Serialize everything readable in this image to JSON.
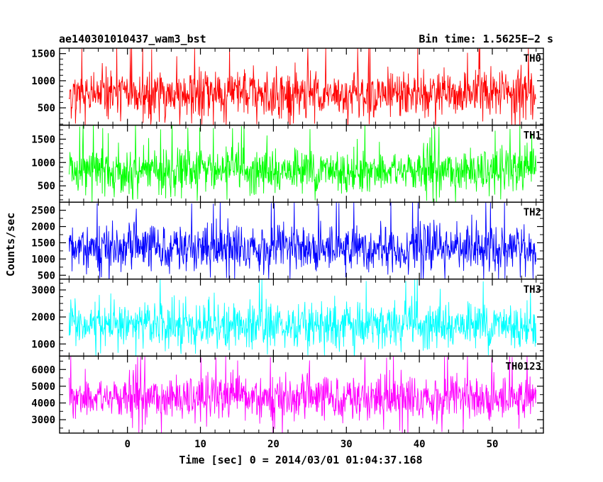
{
  "header": {
    "left_title": "ae140301010437_wam3_bst",
    "right_title": "Bin time: 1.5625E−2 s"
  },
  "chart_data": {
    "type": "line",
    "title": "ae140301010437_wam3_bst",
    "subtitle": "Bin time: 1.5625E−2 s",
    "xlabel": "Time [sec] 0 = 2014/03/01 01:04:37.168",
    "ylabel": "Counts/sec",
    "xlim": [
      -9.3,
      57.0
    ],
    "data_xrange": [
      -8.0,
      56.0
    ],
    "x_ticks": [
      0,
      10,
      20,
      30,
      40,
      50
    ],
    "x_tick_labels": [
      "0",
      "10",
      "20",
      "30",
      "40",
      "50"
    ],
    "grid": false,
    "series": [
      {
        "name": "TH0",
        "color": "#ff0000",
        "ylim": [
          180,
          1600
        ],
        "mean": 750,
        "low": 230,
        "high": 1580,
        "y_ticks": [
          500,
          1000,
          1500
        ],
        "y_tick_labels": [
          "500",
          "1000",
          "1500"
        ]
      },
      {
        "name": "TH1",
        "color": "#00ff00",
        "ylim": [
          150,
          1800
        ],
        "mean": 820,
        "low": 200,
        "high": 1700,
        "y_ticks": [
          500,
          1000,
          1500
        ],
        "y_tick_labels": [
          "500",
          "1000",
          "1500"
        ]
      },
      {
        "name": "TH2",
        "color": "#0000ff",
        "ylim": [
          380,
          2750
        ],
        "mean": 1350,
        "low": 450,
        "high": 2700,
        "y_ticks": [
          500,
          1000,
          1500,
          2000,
          2500
        ],
        "y_tick_labels": [
          "500",
          "1000",
          "1500",
          "2000",
          "2500"
        ]
      },
      {
        "name": "TH3",
        "color": "#00ffff",
        "ylim": [
          550,
          3400
        ],
        "mean": 1700,
        "low": 650,
        "high": 3300,
        "y_ticks": [
          1000,
          2000,
          3000
        ],
        "y_tick_labels": [
          "1000",
          "2000",
          "3000"
        ]
      },
      {
        "name": "TH0123",
        "color": "#ff00ff",
        "ylim": [
          2200,
          6800
        ],
        "mean": 4300,
        "low": 2500,
        "high": 6700,
        "y_ticks": [
          3000,
          4000,
          5000,
          6000
        ],
        "y_tick_labels": [
          "3000",
          "4000",
          "5000",
          "6000"
        ]
      }
    ]
  }
}
